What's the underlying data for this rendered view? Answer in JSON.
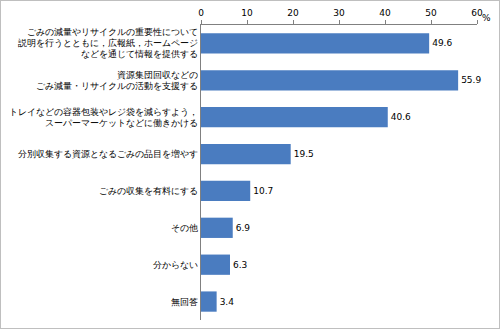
{
  "chart_data": {
    "type": "bar",
    "orientation": "horizontal",
    "xlabel": "%",
    "categories": [
      "ごみの減量やリサイクルの重要性について\n説明を行うとともに，広報紙，ホームページ\nなどを通じて情報を提供する",
      "資源集団回収などの\nごみ減量・リサイクルの活動を支援する",
      "トレイなどの容器包装やレジ袋を減らすよう，\nスーパーマーケットなどに働きかける",
      "分別収集する資源となるごみの品目を増やす",
      "ごみの収集を有料にする",
      "その他",
      "分からない",
      "無回答"
    ],
    "values": [
      49.6,
      55.9,
      40.6,
      19.5,
      10.7,
      6.9,
      6.3,
      3.4
    ],
    "color": "#4a7cc0",
    "xlim": [
      0,
      60
    ],
    "xticks": [
      0,
      10,
      20,
      30,
      40,
      50,
      60
    ],
    "grid": false,
    "data_labels": true
  }
}
